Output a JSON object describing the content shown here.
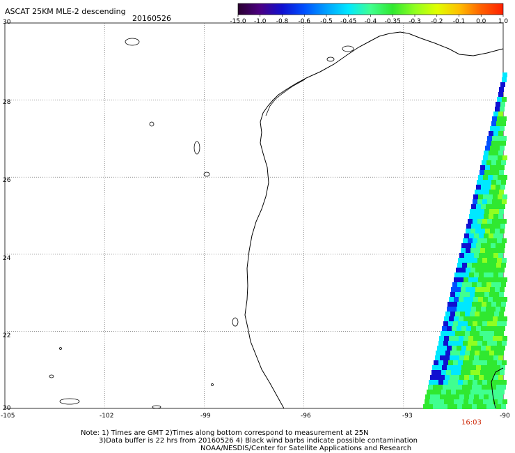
{
  "header": {
    "title": "ASCAT 25KM MLE-2 descending",
    "date": "20160526"
  },
  "colorbar": {
    "labels": [
      "-15.0",
      "-1.0",
      "-0.8",
      "-0.6",
      "-0.5",
      "-0.45",
      "-0.4",
      "-0.35",
      "-0.3",
      "-0.2",
      "-0.1",
      "0.0",
      "1.0"
    ],
    "colors": [
      "#2a0030",
      "#4b0082",
      "#1010d0",
      "#0050ff",
      "#00a0ff",
      "#00e8ff",
      "#40ff90",
      "#30e830",
      "#90ff20",
      "#e0ff00",
      "#ffc000",
      "#ff6000",
      "#ff2000"
    ]
  },
  "axes": {
    "lon_labels": [
      "-105",
      "-102",
      "-99",
      "-96",
      "-93",
      "-90"
    ],
    "lat_labels": [
      "30",
      "28",
      "26",
      "24",
      "22",
      "20"
    ]
  },
  "time_label": "16:03",
  "notes": {
    "line1": "Note: 1) Times are GMT 2)Times along bottom correspond to measurement at 25N",
    "line2": "3)Data buffer is 22 hrs from 20160526 4) Black wind barbs indicate possible contamination",
    "line3": "NOAA/NESDIS/Center for Satellite Applications and Research"
  }
}
